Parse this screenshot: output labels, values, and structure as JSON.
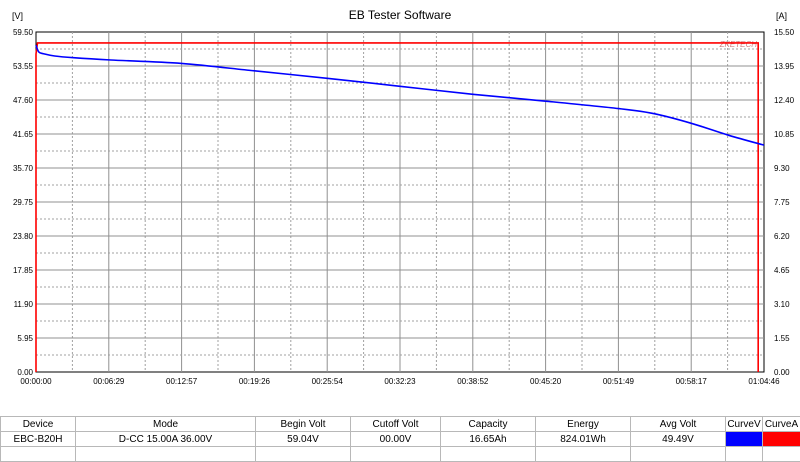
{
  "chart_data": {
    "type": "line",
    "title": "EB Tester Software",
    "left_unit": "[V]",
    "right_unit": "[A]",
    "watermark": "ZKETECH",
    "left_ticks": [
      "59.50",
      "53.55",
      "47.60",
      "41.65",
      "35.70",
      "29.75",
      "23.80",
      "17.85",
      "11.90",
      "5.95",
      "0.00"
    ],
    "right_ticks": [
      "15.50",
      "13.95",
      "12.40",
      "10.85",
      "9.30",
      "7.75",
      "6.20",
      "4.65",
      "3.10",
      "1.55",
      "0.00"
    ],
    "x_ticks": [
      "00:00:00",
      "00:06:29",
      "00:12:57",
      "00:19:26",
      "00:25:54",
      "00:32:23",
      "00:38:52",
      "00:45:20",
      "00:51:49",
      "00:58:17",
      "01:04:46"
    ],
    "ylim_left": [
      0,
      59.5
    ],
    "ylim_right": [
      0,
      15.5
    ],
    "xlim_seconds": [
      0,
      3886
    ],
    "grid": true,
    "series": [
      {
        "name": "CurveV",
        "color": "#0000ff",
        "x_seconds": [
          0,
          15,
          40,
          100,
          200,
          400,
          777,
          1166,
          1554,
          1943,
          2332,
          2720,
          3109,
          3300,
          3500,
          3700,
          3886
        ],
        "y": [
          57.2,
          56.0,
          55.7,
          55.3,
          55.0,
          54.6,
          54.0,
          52.7,
          51.4,
          50.0,
          48.6,
          47.4,
          46.1,
          45.2,
          43.5,
          41.4,
          39.7
        ]
      },
      {
        "name": "CurveA",
        "color": "#ff0000",
        "x_seconds": [
          0,
          0,
          8,
          3850,
          3855,
          3855
        ],
        "y": [
          0,
          14.5,
          15.0,
          15.0,
          15.0,
          0
        ]
      }
    ]
  },
  "table": {
    "headers": [
      "Device",
      "Mode",
      "Begin Volt",
      "Cutoff Volt",
      "Capacity",
      "Energy",
      "Avg Volt",
      "CurveV",
      "CurveA"
    ],
    "row": [
      "EBC-B20H",
      "D-CC  15.00A  36.00V",
      "59.04V",
      "00.00V",
      "16.65Ah",
      "824.01Wh",
      "49.49V"
    ],
    "curve_colors": [
      "#0000ff",
      "#ff0000"
    ]
  }
}
